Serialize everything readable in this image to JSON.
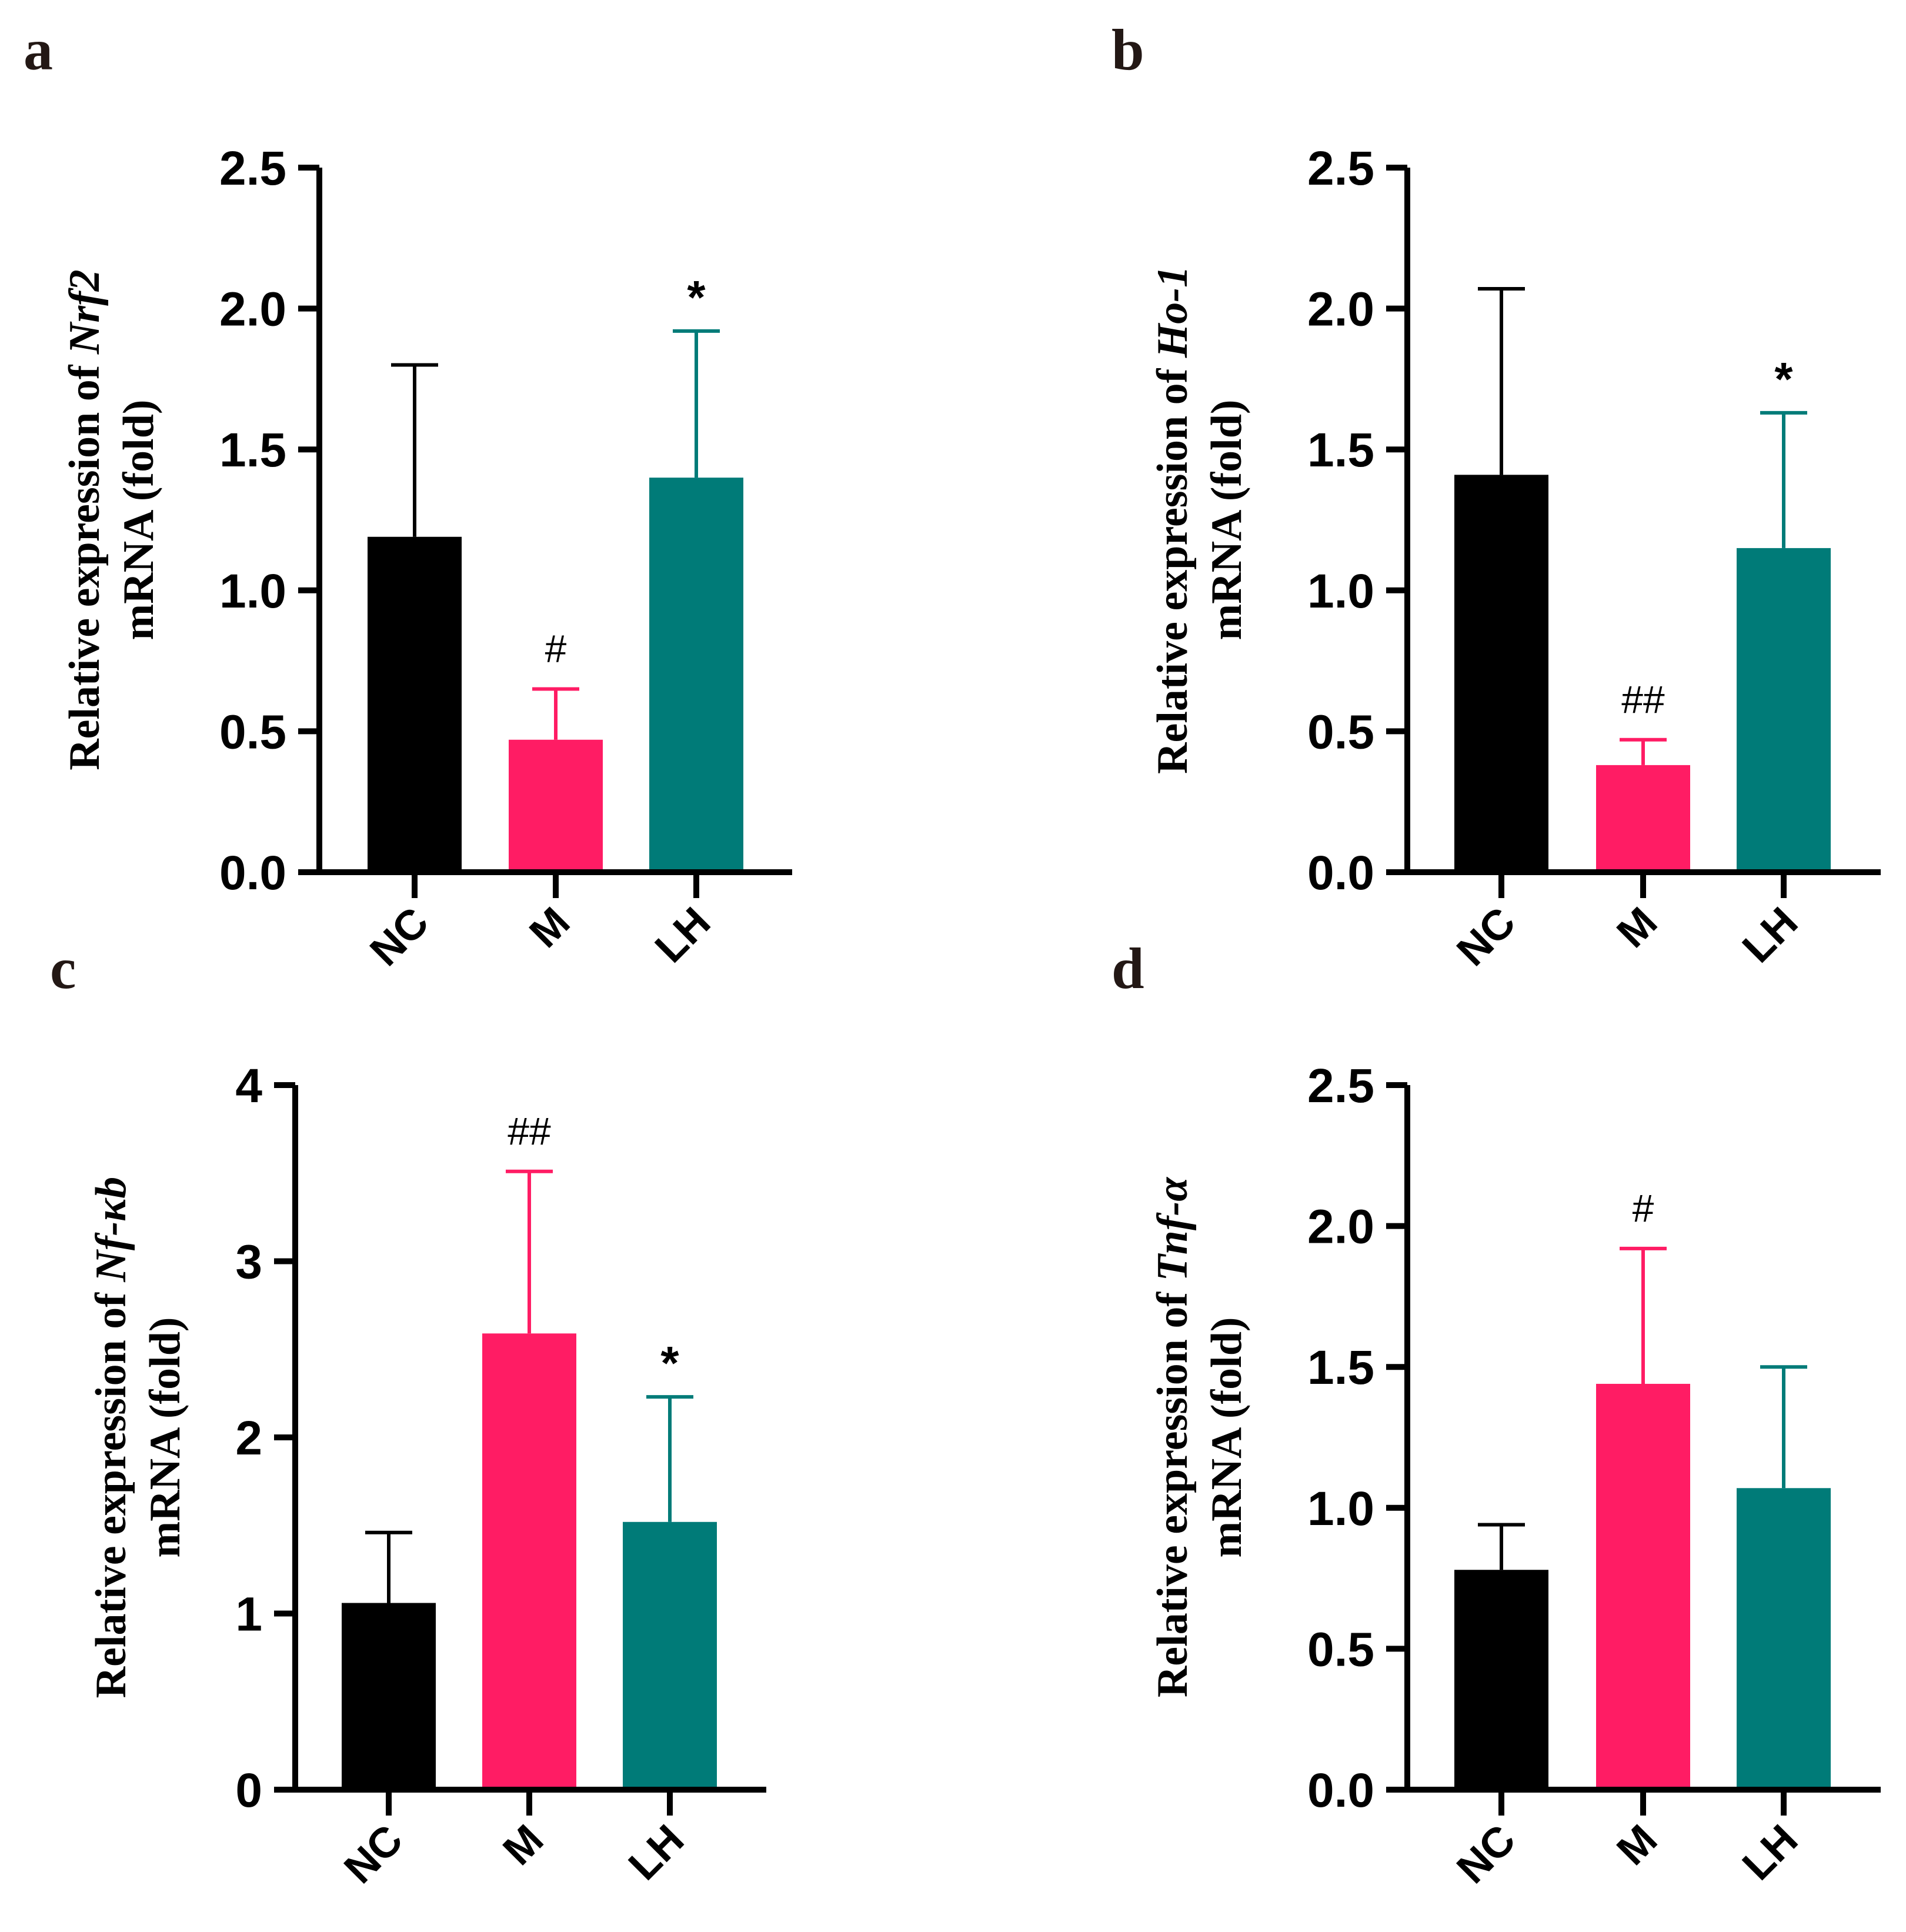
{
  "colors": {
    "NC": "#000000",
    "M": "#ff1c64",
    "LH": "#007b78",
    "axis": "#000000"
  },
  "chart_data": [
    {
      "panel": "a",
      "type": "bar",
      "ylabel_prefix": "Relative expression of ",
      "gene": "Nrf2",
      "ylabel_line2": "mRNA (fold)",
      "categories": [
        "NC",
        "M",
        "LH"
      ],
      "values": [
        1.19,
        0.47,
        1.4
      ],
      "errors": [
        0.61,
        0.18,
        0.52
      ],
      "annotations": [
        "",
        "#",
        "*"
      ],
      "ylim": [
        0,
        2.5
      ],
      "yticks": [
        "0.0",
        "0.5",
        "1.0",
        "1.5",
        "2.0",
        "2.5"
      ]
    },
    {
      "panel": "b",
      "type": "bar",
      "ylabel_prefix": "Relative expression of ",
      "gene": "Ho-1",
      "ylabel_line2": "mRNA (fold)",
      "categories": [
        "NC",
        "M",
        "LH"
      ],
      "values": [
        1.41,
        0.38,
        1.15
      ],
      "errors": [
        0.66,
        0.09,
        0.48
      ],
      "annotations": [
        "",
        "##",
        "*"
      ],
      "ylim": [
        0,
        2.5
      ],
      "yticks": [
        "0.0",
        "0.5",
        "1.0",
        "1.5",
        "2.0",
        "2.5"
      ]
    },
    {
      "panel": "c",
      "type": "bar",
      "ylabel_prefix": "Relative expression of ",
      "gene": "Nf-κb",
      "ylabel_line2": "mRNA (fold)",
      "categories": [
        "NC",
        "M",
        "LH"
      ],
      "values": [
        1.06,
        2.59,
        1.52
      ],
      "errors": [
        0.4,
        0.92,
        0.71
      ],
      "annotations": [
        "",
        "##",
        "*"
      ],
      "ylim": [
        0,
        4
      ],
      "yticks": [
        "0",
        "1",
        "2",
        "3",
        "4"
      ]
    },
    {
      "panel": "d",
      "type": "bar",
      "ylabel_prefix": "Relative expression of ",
      "gene": "Tnf-α",
      "ylabel_line2": "mRNA (fold)",
      "categories": [
        "NC",
        "M",
        "LH"
      ],
      "values": [
        0.78,
        1.44,
        1.07
      ],
      "errors": [
        0.16,
        0.48,
        0.43
      ],
      "annotations": [
        "",
        "#",
        ""
      ],
      "ylim": [
        0,
        2.5
      ],
      "yticks": [
        "0.0",
        "0.5",
        "1.0",
        "1.5",
        "2.0",
        "2.5"
      ]
    }
  ]
}
